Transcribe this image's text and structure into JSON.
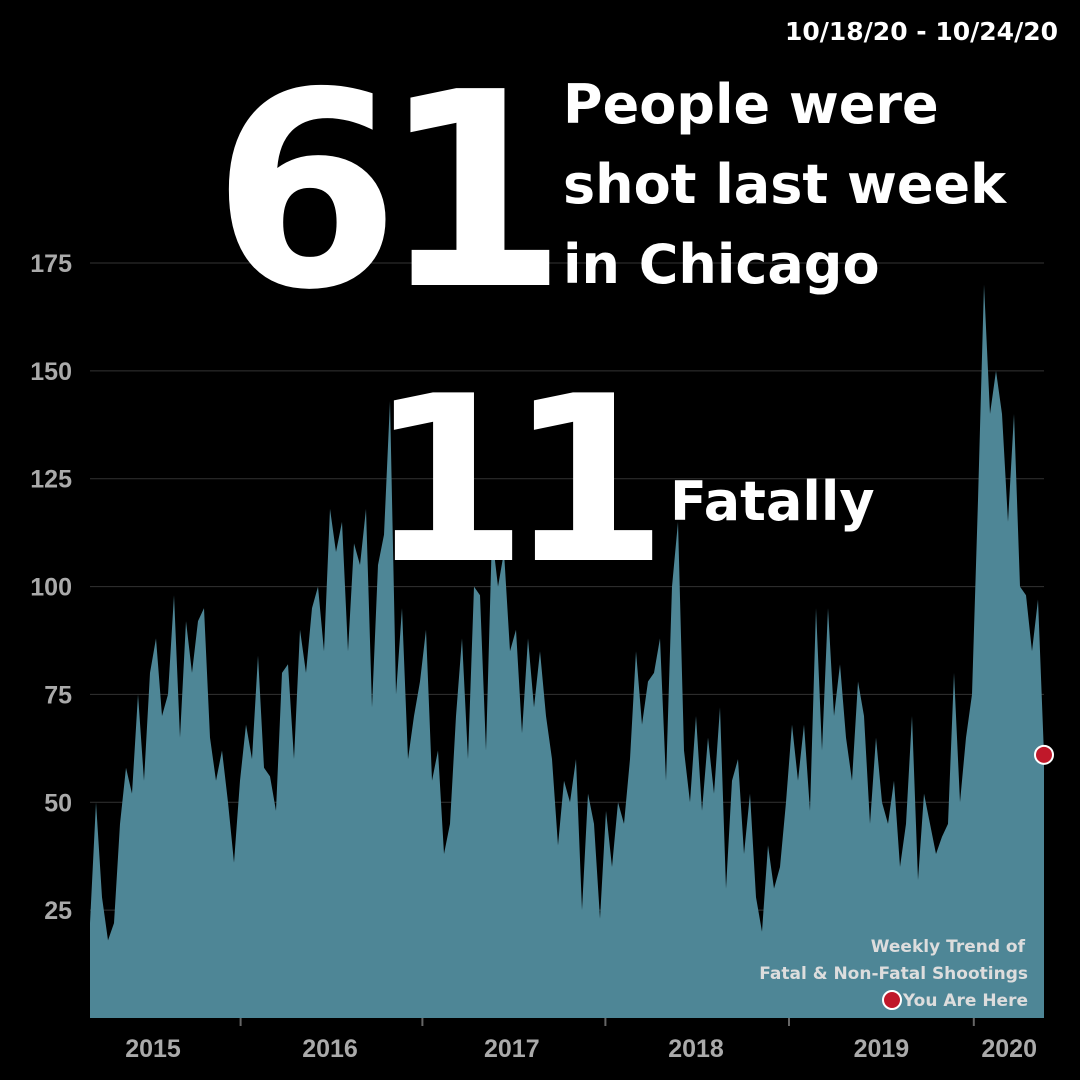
{
  "chart_data": {
    "type": "area",
    "date_range": "10/18/20 - 10/24/20",
    "headline": {
      "total": "61",
      "total_text": [
        "People were",
        "shot last week",
        "in Chicago"
      ],
      "fatal": "11",
      "fatal_text": "Fatally"
    },
    "legend": {
      "title": [
        "Weekly Trend of",
        "Fatal & Non-Fatal Shootings"
      ],
      "marker_label": "You Are Here"
    },
    "color": "#4e8696",
    "marker_color": "#c0182a",
    "grid": true,
    "values": [
      22,
      50,
      28,
      18,
      22,
      45,
      58,
      52,
      75,
      55,
      80,
      88,
      70,
      75,
      98,
      65,
      92,
      80,
      92,
      95,
      65,
      55,
      62,
      50,
      36,
      55,
      68,
      60,
      84,
      58,
      56,
      48,
      80,
      82,
      60,
      90,
      80,
      95,
      100,
      85,
      118,
      108,
      115,
      85,
      110,
      105,
      118,
      72,
      105,
      112,
      143,
      75,
      95,
      60,
      70,
      78,
      90,
      55,
      62,
      38,
      45,
      70,
      88,
      60,
      100,
      98,
      62,
      112,
      100,
      108,
      85,
      90,
      66,
      88,
      72,
      85,
      70,
      60,
      40,
      55,
      50,
      60,
      25,
      52,
      45,
      23,
      48,
      35,
      50,
      45,
      60,
      85,
      68,
      78,
      80,
      88,
      55,
      100,
      115,
      62,
      50,
      70,
      48,
      65,
      52,
      72,
      30,
      55,
      60,
      38,
      52,
      28,
      20,
      40,
      30,
      35,
      50,
      68,
      55,
      68,
      48,
      95,
      62,
      95,
      70,
      82,
      65,
      55,
      78,
      70,
      45,
      65,
      50,
      45,
      55,
      35,
      45,
      70,
      32,
      52,
      45,
      38,
      42,
      45,
      80,
      50,
      65,
      75,
      120,
      170,
      140,
      150,
      140,
      115,
      140,
      100,
      98,
      85,
      97,
      61
    ],
    "xlim": [
      0,
      159
    ],
    "xticks": [
      25.1,
      55.4,
      85.9,
      116.5,
      147.3
    ],
    "xlabels": [
      {
        "value": 10.5,
        "label": "2015"
      },
      {
        "value": 40,
        "label": "2016"
      },
      {
        "value": 70.3,
        "label": "2017"
      },
      {
        "value": 101,
        "label": "2018"
      },
      {
        "value": 131.9,
        "label": "2019"
      },
      {
        "value": 153.2,
        "label": "2020"
      }
    ],
    "ylim": [
      0,
      175
    ],
    "yticks": [
      25,
      50,
      75,
      100,
      125,
      150,
      175
    ]
  }
}
